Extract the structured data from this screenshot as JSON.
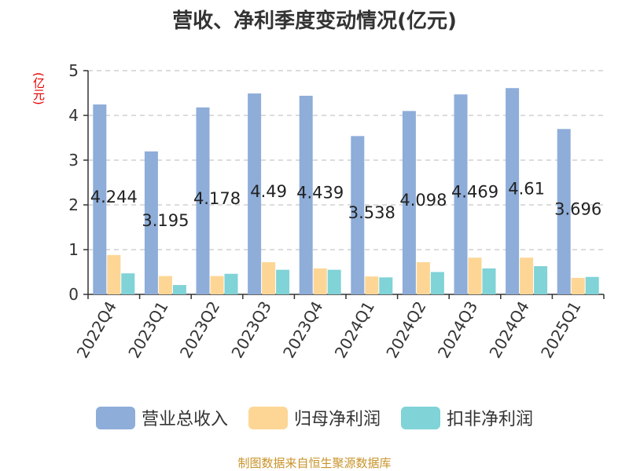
{
  "chart_data": {
    "type": "bar",
    "title": "营收、净利季度变动情况(亿元)",
    "unit": "(亿元)",
    "ylim": [
      0,
      5
    ],
    "yticks": [
      0,
      1,
      2,
      3,
      4,
      5
    ],
    "grid": true,
    "legend_position": "bottom",
    "categories": [
      "2022Q4",
      "2023Q1",
      "2023Q2",
      "2023Q3",
      "2023Q4",
      "2024Q1",
      "2024Q2",
      "2024Q3",
      "2024Q4",
      "2025Q1"
    ],
    "series": [
      {
        "name": "营业总收入",
        "color": "#8eadd9",
        "values": [
          4.244,
          3.195,
          4.178,
          4.49,
          4.439,
          3.538,
          4.098,
          4.469,
          4.61,
          3.696
        ],
        "labels": [
          "4.244",
          "3.195",
          "4.178",
          "4.49",
          "4.439",
          "3.538",
          "4.098",
          "4.469",
          "4.61",
          "3.696"
        ]
      },
      {
        "name": "归母净利润",
        "color": "#fdd696",
        "values": [
          0.88,
          0.41,
          0.41,
          0.72,
          0.58,
          0.4,
          0.72,
          0.82,
          0.82,
          0.37
        ]
      },
      {
        "name": "扣非净利润",
        "color": "#80d3d7",
        "values": [
          0.47,
          0.21,
          0.46,
          0.55,
          0.55,
          0.38,
          0.5,
          0.58,
          0.63,
          0.39
        ]
      }
    ],
    "source": "制图数据来自恒生聚源数据库"
  }
}
